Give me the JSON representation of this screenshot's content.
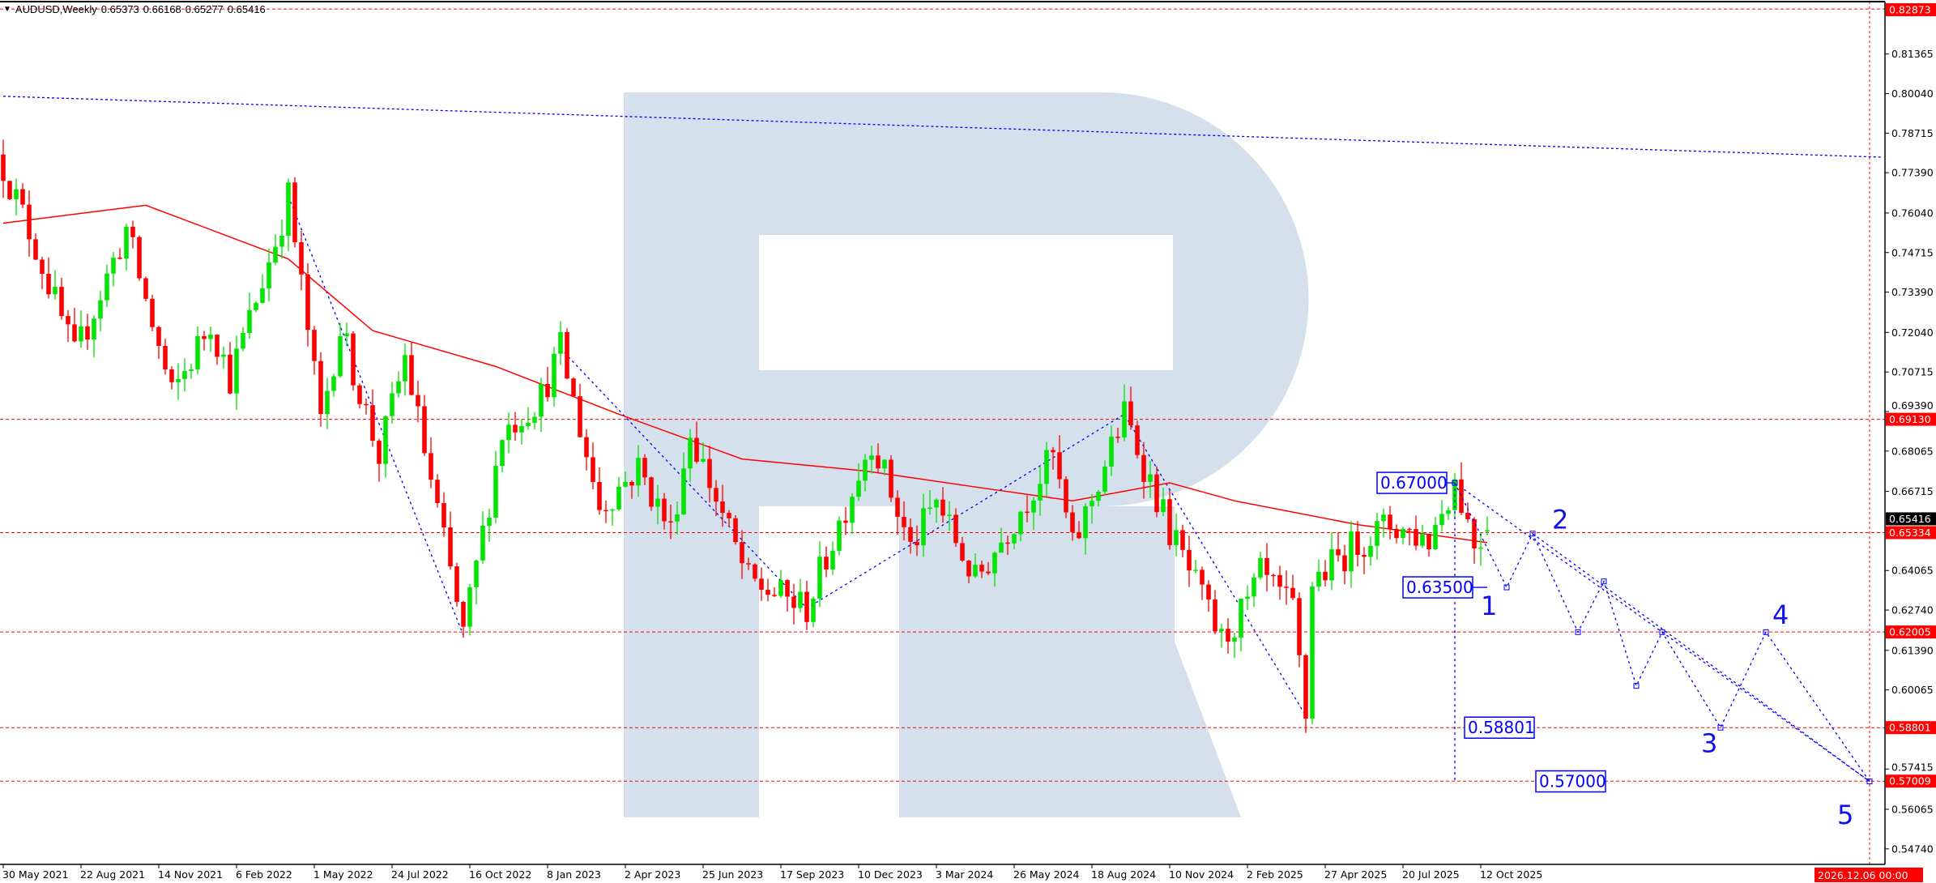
{
  "header": {
    "icon": "triangle-down-icon",
    "symbol_timeframe": "AUDUSD,Weekly",
    "open": "0.65373",
    "high": "0.66168",
    "low": "0.65277",
    "close": "0.65416"
  },
  "chart_data": {
    "type": "candlestick",
    "symbol": "AUDUSD",
    "timeframe": "Weekly",
    "colors": {
      "up": "#00e600",
      "down": "#ff0000",
      "ma": "#ff0000",
      "levels": "#ff0000",
      "wave": "#0000ff",
      "watermark": "#d4e0ec"
    },
    "price_axis": {
      "range": [
        0.5474,
        0.82873
      ],
      "ticks": [
        "0.81365",
        "0.80040",
        "0.78715",
        "0.77390",
        "0.76040",
        "0.74715",
        "0.73390",
        "0.72040",
        "0.70715",
        "0.69390",
        "0.68065",
        "0.66715",
        "0.64065",
        "0.62740",
        "0.61390",
        "0.60065",
        "0.57415",
        "0.56065",
        "0.54740"
      ]
    },
    "time_axis": {
      "ticks": [
        "30 May 2021",
        "22 Aug 2021",
        "14 Nov 2021",
        "6 Feb 2022",
        "1 May 2022",
        "24 Jul 2022",
        "16 Oct 2022",
        "8 Jan 2023",
        "2 Apr 2023",
        "25 Jun 2023",
        "17 Sep 2023",
        "10 Dec 2023",
        "3 Mar 2024",
        "26 May 2024",
        "18 Aug 2024",
        "10 Nov 2024",
        "2 Feb 2025",
        "27 Apr 2025",
        "20 Jul 2025",
        "12 Oct 2025"
      ],
      "cursor_label": "2026.12.06 00:00",
      "cursor_date": "2026-12-06"
    },
    "price_path": [
      [
        "2021-05-30",
        0.776
      ],
      [
        "2021-07-04",
        0.749
      ],
      [
        "2021-08-15",
        0.712
      ],
      [
        "2021-10-10",
        0.755
      ],
      [
        "2021-11-28",
        0.699
      ],
      [
        "2022-01-09",
        0.724
      ],
      [
        "2022-01-30",
        0.705
      ],
      [
        "2022-03-20",
        0.751
      ],
      [
        "2022-04-03",
        0.766
      ],
      [
        "2022-05-08",
        0.691
      ],
      [
        "2022-05-29",
        0.722
      ],
      [
        "2022-07-10",
        0.679
      ],
      [
        "2022-08-07",
        0.712
      ],
      [
        "2022-10-09",
        0.619
      ],
      [
        "2022-11-20",
        0.687
      ],
      [
        "2023-01-01",
        0.699
      ],
      [
        "2023-01-22",
        0.715
      ],
      [
        "2023-03-05",
        0.662
      ],
      [
        "2023-04-16",
        0.675
      ],
      [
        "2023-05-21",
        0.654
      ],
      [
        "2023-06-11",
        0.687
      ],
      [
        "2023-08-13",
        0.637
      ],
      [
        "2023-10-15",
        0.628
      ],
      [
        "2023-12-24",
        0.685
      ],
      [
        "2024-02-04",
        0.648
      ],
      [
        "2024-03-03",
        0.664
      ],
      [
        "2024-04-14",
        0.637
      ],
      [
        "2024-07-07",
        0.679
      ],
      [
        "2024-07-28",
        0.648
      ],
      [
        "2024-09-22",
        0.693
      ],
      [
        "2024-11-10",
        0.654
      ],
      [
        "2025-01-05",
        0.617
      ],
      [
        "2025-02-02",
        0.629
      ],
      [
        "2025-02-16",
        0.639
      ],
      [
        "2025-03-23",
        0.627
      ],
      [
        "2025-04-06",
        0.592
      ],
      [
        "2025-04-13",
        0.637
      ],
      [
        "2025-06-01",
        0.65
      ],
      [
        "2025-07-06",
        0.656
      ],
      [
        "2025-08-17",
        0.651
      ],
      [
        "2025-09-14",
        0.671
      ],
      [
        "2025-10-05",
        0.65
      ],
      [
        "2025-10-19",
        0.654
      ]
    ],
    "moving_average": [
      [
        "2021-05-30",
        0.757
      ],
      [
        "2021-10-31",
        0.763
      ],
      [
        "2022-04-03",
        0.745
      ],
      [
        "2022-07-03",
        0.721
      ],
      [
        "2022-11-13",
        0.709
      ],
      [
        "2023-03-26",
        0.693
      ],
      [
        "2023-08-06",
        0.678
      ],
      [
        "2023-12-17",
        0.674
      ],
      [
        "2024-04-28",
        0.668
      ],
      [
        "2024-07-28",
        0.664
      ],
      [
        "2024-11-10",
        0.67
      ],
      [
        "2025-01-19",
        0.664
      ],
      [
        "2025-06-01",
        0.656
      ],
      [
        "2025-10-19",
        0.65
      ]
    ],
    "levels": [
      "0.82873",
      "0.69130",
      "0.65334",
      "0.62005",
      "0.58801",
      "0.57009"
    ],
    "current_price": "0.65416",
    "trend_line": [
      [
        "2021-05-30",
        0.7995
      ],
      [
        "2026-12-20",
        0.7791
      ]
    ],
    "history_waves": [
      [
        [
          "2022-04-03",
          0.766
        ],
        [
          "2022-10-09",
          0.619
        ]
      ],
      [
        [
          "2023-01-22",
          0.715
        ],
        [
          "2023-10-15",
          0.628
        ],
        [
          "2024-09-22",
          0.693
        ],
        [
          "2025-04-06",
          0.592
        ]
      ]
    ],
    "forecast_path": [
      [
        "2025-09-14",
        0.67
      ],
      [
        "2025-11-09",
        0.635
      ],
      [
        "2025-12-07",
        0.653
      ],
      [
        "2026-01-25",
        0.62
      ],
      [
        "2026-02-22",
        0.637
      ],
      [
        "2026-03-29",
        0.602
      ],
      [
        "2026-04-26",
        0.62
      ],
      [
        "2026-06-28",
        0.588
      ],
      [
        "2026-08-16",
        0.62
      ],
      [
        "2026-12-06",
        0.57
      ]
    ],
    "forecast_lines": [
      [
        [
          "2025-09-14",
          0.67
        ],
        [
          "2026-12-06",
          0.57
        ]
      ],
      [
        [
          "2025-12-07",
          0.653
        ],
        [
          "2026-12-06",
          0.57
        ]
      ]
    ],
    "target_labels": [
      {
        "text": "0.67000",
        "date": "2025-09-14",
        "price": 0.67
      },
      {
        "text": "0.63500",
        "date": "2025-10-19",
        "price": 0.635
      },
      {
        "text": "0.58801",
        "date": "2025-09-14",
        "price": 0.588
      },
      {
        "text": "0.57000",
        "date": "2025-09-14",
        "price": 0.57
      }
    ],
    "wave_labels": [
      {
        "text": "1",
        "date": "2025-10-12",
        "price": 0.629
      },
      {
        "text": "2",
        "date": "2025-12-28",
        "price": 0.658
      },
      {
        "text": "3",
        "date": "2026-06-07",
        "price": 0.583
      },
      {
        "text": "4",
        "date": "2026-08-23",
        "price": 0.626
      },
      {
        "text": "5",
        "date": "2026-11-01",
        "price": 0.559
      }
    ]
  }
}
